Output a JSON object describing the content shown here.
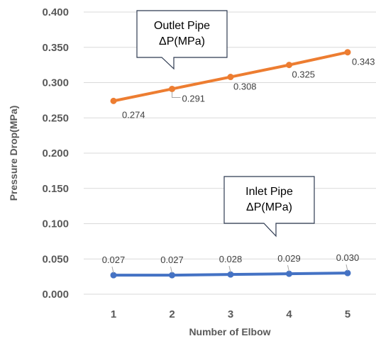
{
  "chart_data": {
    "type": "line",
    "xlabel": "Number of Elbow",
    "ylabel": "Pressure Drop(MPa)",
    "categories": [
      "1",
      "2",
      "3",
      "4",
      "5"
    ],
    "ylim": [
      0,
      0.4
    ],
    "yticks": [
      "0.000",
      "0.050",
      "0.100",
      "0.150",
      "0.200",
      "0.250",
      "0.300",
      "0.350",
      "0.400"
    ],
    "grid": true,
    "series": [
      {
        "callout": [
          "Outlet Pipe",
          "ΔP(MPa)"
        ],
        "color": "#ed7d31",
        "values": [
          0.274,
          0.291,
          0.308,
          0.325,
          0.343
        ],
        "labels": [
          "0.274",
          "0.291",
          "0.308",
          "0.325",
          "0.343"
        ]
      },
      {
        "callout": [
          "Inlet Pipe",
          "ΔP(MPa)"
        ],
        "color": "#4472c4",
        "values": [
          0.027,
          0.027,
          0.028,
          0.029,
          0.03
        ],
        "labels": [
          "0.027",
          "0.027",
          "0.028",
          "0.029",
          "0.030"
        ]
      }
    ]
  }
}
